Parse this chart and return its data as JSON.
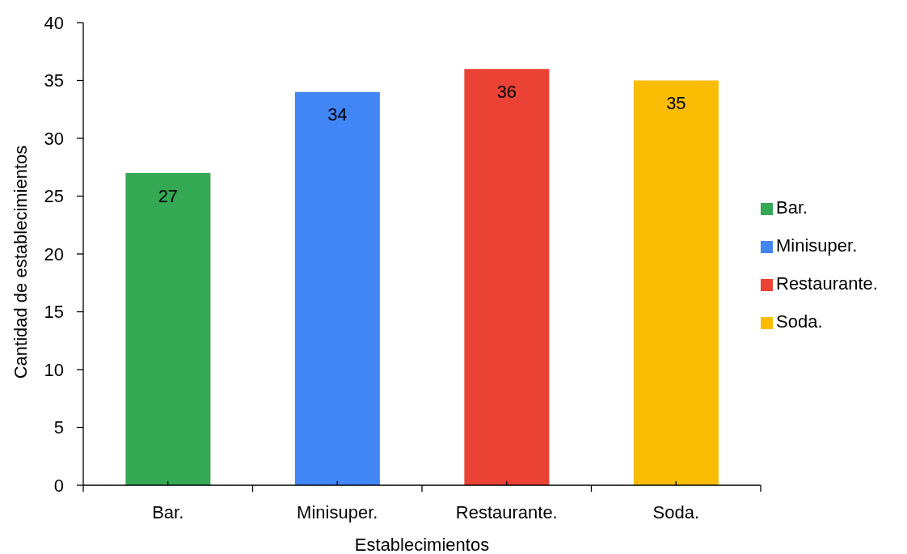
{
  "chart_data": {
    "type": "bar",
    "xlabel": "Establecimientos",
    "ylabel": "Cantidad de establecimientos",
    "categories": [
      "Bar.",
      "Minisuper.",
      "Restaurante.",
      "Soda."
    ],
    "series": [
      {
        "name": "Bar.",
        "color": "#34a853",
        "values": [
          27,
          null,
          null,
          null
        ]
      },
      {
        "name": "Minisuper.",
        "color": "#4285f4",
        "values": [
          null,
          34,
          null,
          null
        ]
      },
      {
        "name": "Restaurante.",
        "color": "#ea4335",
        "values": [
          null,
          null,
          36,
          null
        ]
      },
      {
        "name": "Soda.",
        "color": "#fbbc04",
        "values": [
          null,
          null,
          null,
          35
        ]
      }
    ],
    "stacked": true,
    "ylim": [
      0,
      40
    ],
    "yticks": [
      0,
      5,
      10,
      15,
      20,
      25,
      30,
      35,
      40
    ],
    "data_labels": true,
    "legend": "right"
  }
}
